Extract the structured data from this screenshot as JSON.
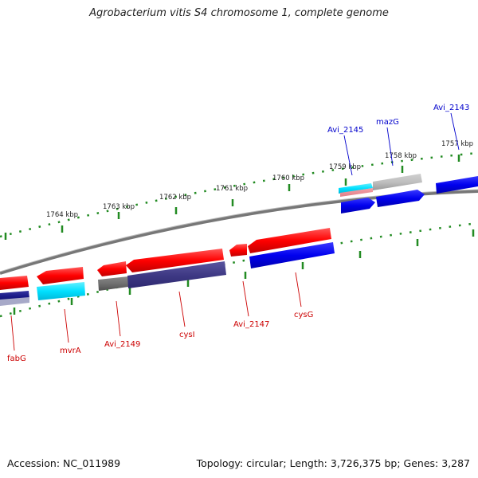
{
  "title": "Agrobacterium vitis S4 chromosome 1, complete genome",
  "footer": {
    "accession": "Accession: NC_011989",
    "stats": "Topology: circular; Length: 3,726,375 bp; Genes: 3,287"
  },
  "scale": {
    "unit": "kbp",
    "ticks": [
      {
        "label": "1757 kbp"
      },
      {
        "label": "1758 kbp"
      },
      {
        "label": "1759 kbp"
      },
      {
        "label": "1760 kbp"
      },
      {
        "label": "1761 kbp"
      },
      {
        "label": "1762 kbp"
      },
      {
        "label": "1763 kbp"
      },
      {
        "label": "1764 kbp"
      }
    ]
  },
  "gene_labels": {
    "forward": [
      "Avi_2145",
      "mazG",
      "Avi_2143"
    ],
    "reverse": [
      "fabG",
      "mvrA",
      "Avi_2149",
      "cysI",
      "Avi_2147",
      "cysG"
    ]
  },
  "colors": {
    "forward_label": "#0000cc",
    "reverse_label": "#cc0000",
    "scale_tick": "#228B22",
    "backbone": "#888888"
  }
}
